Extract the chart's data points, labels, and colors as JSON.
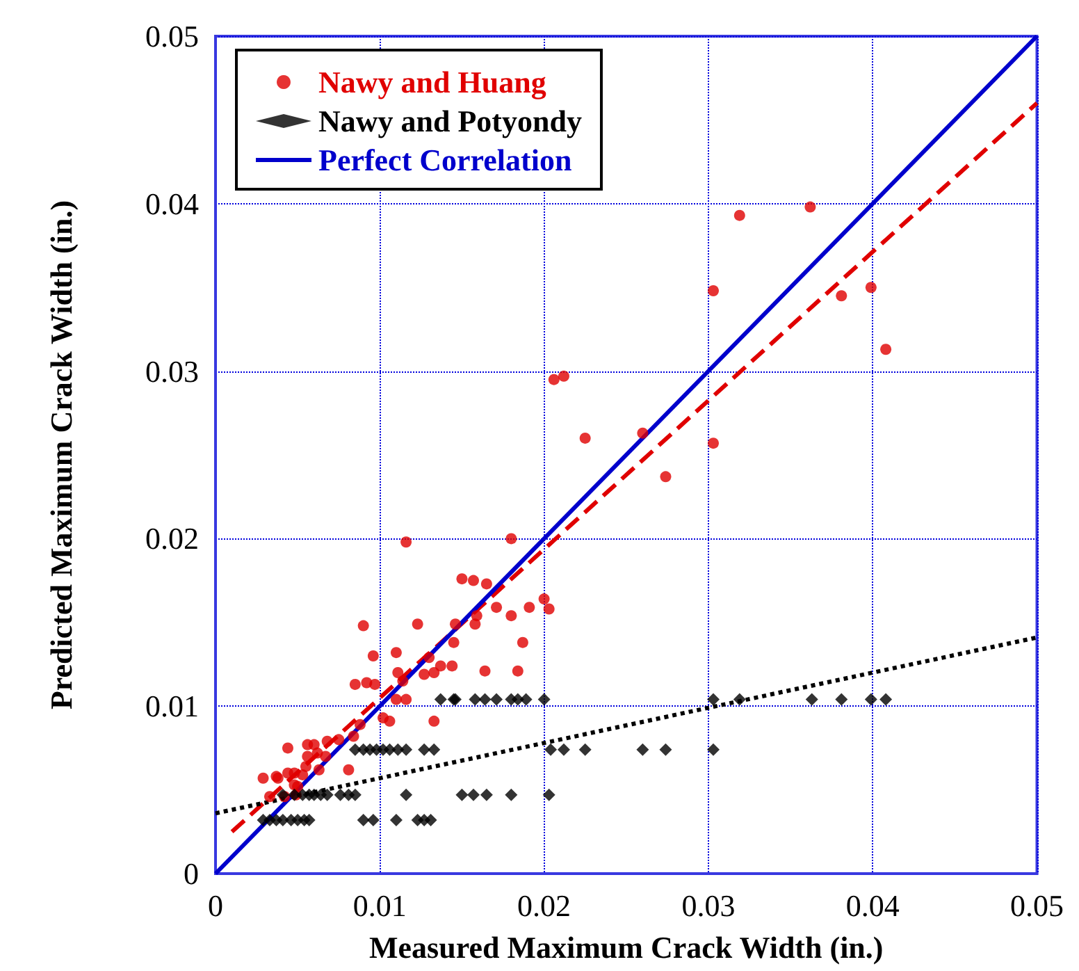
{
  "chart_data": {
    "type": "scatter",
    "xlabel": "Measured Maximum Crack Width (in.)",
    "ylabel": "Predicted Maximum Crack Width (in.)",
    "xlim": [
      0,
      0.05
    ],
    "ylim": [
      0,
      0.05
    ],
    "xticks": [
      0,
      0.01,
      0.02,
      0.03,
      0.04,
      0.05
    ],
    "yticks": [
      0,
      0.01,
      0.02,
      0.03,
      0.04,
      0.05
    ],
    "grid": true,
    "legend": "top left",
    "series": [
      {
        "name": "Nawy and Huang",
        "color": "#e00000",
        "marker": "circle",
        "x": [
          0.0116,
          0.018,
          0.015,
          0.0157,
          0.0165,
          0.009,
          0.0123,
          0.0171,
          0.0191,
          0.0159,
          0.0158,
          0.0146,
          0.018,
          0.02,
          0.0203,
          0.0145,
          0.0187,
          0.0096,
          0.011,
          0.013,
          0.0137,
          0.0144,
          0.0127,
          0.0133,
          0.0111,
          0.0164,
          0.0184,
          0.0085,
          0.0092,
          0.0097,
          0.0114,
          0.011,
          0.0116,
          0.0102,
          0.0106,
          0.0133,
          0.0088,
          0.0084,
          0.0075,
          0.0068,
          0.0044,
          0.0056,
          0.006,
          0.0062,
          0.0056,
          0.0067,
          0.0055,
          0.0063,
          0.0081,
          0.0044,
          0.0048,
          0.0053,
          0.0029,
          0.0037,
          0.0038,
          0.0048,
          0.005,
          0.0033,
          0.0042,
          0.0049,
          0.0303,
          0.0319,
          0.0362,
          0.0381,
          0.0399,
          0.0408,
          0.0212,
          0.0206,
          0.0225,
          0.026,
          0.0303,
          0.0274
        ],
        "values": [
          0.0198,
          0.02,
          0.0176,
          0.0175,
          0.0173,
          0.0148,
          0.0149,
          0.0159,
          0.0159,
          0.0154,
          0.0149,
          0.0149,
          0.0154,
          0.0164,
          0.0158,
          0.0138,
          0.0138,
          0.013,
          0.0132,
          0.0129,
          0.0124,
          0.0124,
          0.0119,
          0.012,
          0.012,
          0.0121,
          0.0121,
          0.0113,
          0.0114,
          0.0113,
          0.0115,
          0.0104,
          0.0104,
          0.0093,
          0.0091,
          0.0091,
          0.0089,
          0.0082,
          0.008,
          0.0079,
          0.0075,
          0.0077,
          0.0077,
          0.0072,
          0.007,
          0.007,
          0.0064,
          0.0062,
          0.0062,
          0.006,
          0.006,
          0.0059,
          0.0057,
          0.0058,
          0.0057,
          0.0053,
          0.0052,
          0.0046,
          0.0046,
          0.0047,
          0.0348,
          0.0393,
          0.0398,
          0.0345,
          0.035,
          0.0313,
          0.0297,
          0.0295,
          0.026,
          0.0263,
          0.0257,
          0.0237
        ]
      },
      {
        "type": "line",
        "color": "#e00000",
        "line_style": "dashed",
        "marker": "none",
        "x": [
          0.001,
          0.05
        ],
        "values": [
          0.0025,
          0.046
        ]
      },
      {
        "name": "Nawy and Potyondy",
        "color": "#000000",
        "marker": "diamond",
        "x": [
          0.0137,
          0.0145,
          0.0146,
          0.0158,
          0.0164,
          0.0171,
          0.018,
          0.0184,
          0.0189,
          0.02,
          0.0303,
          0.0319,
          0.0363,
          0.0381,
          0.0399,
          0.0408,
          0.0085,
          0.009,
          0.0094,
          0.0098,
          0.0102,
          0.0106,
          0.0111,
          0.0116,
          0.0127,
          0.0133,
          0.0204,
          0.0212,
          0.0225,
          0.026,
          0.0274,
          0.0303,
          0.0041,
          0.0048,
          0.0053,
          0.0057,
          0.006,
          0.0064,
          0.0068,
          0.0076,
          0.0081,
          0.0085,
          0.0116,
          0.015,
          0.0157,
          0.0165,
          0.018,
          0.0203,
          0.0029,
          0.0033,
          0.0037,
          0.0041,
          0.0046,
          0.005,
          0.0054,
          0.0057,
          0.009,
          0.0096,
          0.011,
          0.0123,
          0.0127,
          0.0131
        ],
        "values": [
          0.0104,
          0.0104,
          0.0104,
          0.0104,
          0.0104,
          0.0104,
          0.0104,
          0.0104,
          0.0104,
          0.0104,
          0.0104,
          0.0104,
          0.0104,
          0.0104,
          0.0104,
          0.0104,
          0.0074,
          0.0074,
          0.0074,
          0.0074,
          0.0074,
          0.0074,
          0.0074,
          0.0074,
          0.0074,
          0.0074,
          0.0074,
          0.0074,
          0.0074,
          0.0074,
          0.0074,
          0.0074,
          0.0047,
          0.0047,
          0.0047,
          0.0047,
          0.0047,
          0.0047,
          0.0047,
          0.0047,
          0.0047,
          0.0047,
          0.0047,
          0.0047,
          0.0047,
          0.0047,
          0.0047,
          0.0047,
          0.0032,
          0.0032,
          0.0032,
          0.0032,
          0.0032,
          0.0032,
          0.0032,
          0.0032,
          0.0032,
          0.0032,
          0.0032,
          0.0032,
          0.0032,
          0.0032
        ]
      },
      {
        "type": "line",
        "color": "#000000",
        "line_style": "dotted",
        "marker": "none",
        "x": [
          0,
          0.05
        ],
        "values": [
          0.0036,
          0.0141
        ]
      },
      {
        "name": "Perfect Correlation",
        "type": "line",
        "color": "#0000cc",
        "line_style": "solid",
        "marker": "none",
        "x": [
          0,
          0.05
        ],
        "values": [
          0,
          0.05
        ]
      }
    ]
  }
}
